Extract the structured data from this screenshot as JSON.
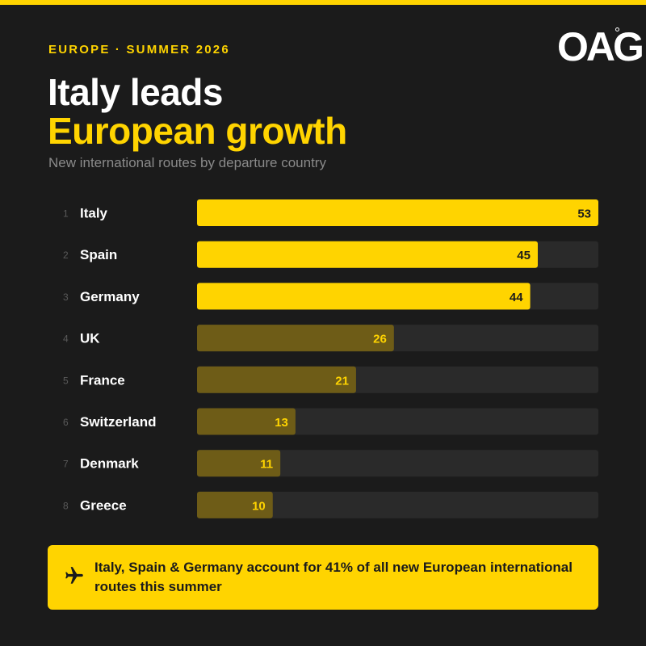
{
  "header": {
    "eyebrow": "EUROPE · SUMMER 2026",
    "logo": "OAG",
    "title_line1": "Italy leads",
    "title_line2": "European growth",
    "subtitle": "New international routes by departure country"
  },
  "colors": {
    "background": "#1b1b1b",
    "accent": "#ffd400",
    "bar_dim": "#6e5c17",
    "track": "#2a2a2a",
    "rank_text": "#5a5a5a",
    "label_text": "#ffffff"
  },
  "chart_data": {
    "type": "bar",
    "orientation": "horizontal",
    "title": "New international routes by departure country",
    "ranks": [
      "1",
      "2",
      "3",
      "4",
      "5",
      "6",
      "7",
      "8"
    ],
    "categories": [
      "Italy",
      "Spain",
      "Germany",
      "UK",
      "France",
      "Switzerland",
      "Denmark",
      "Greece"
    ],
    "values": [
      53,
      45,
      44,
      26,
      21,
      13,
      11,
      10
    ],
    "highlighted_count": 3,
    "xlim": [
      0,
      53
    ]
  },
  "callout": {
    "icon": "plane-icon",
    "text": "Italy, Spain & Germany account for 41% of all new European international routes this summer"
  }
}
